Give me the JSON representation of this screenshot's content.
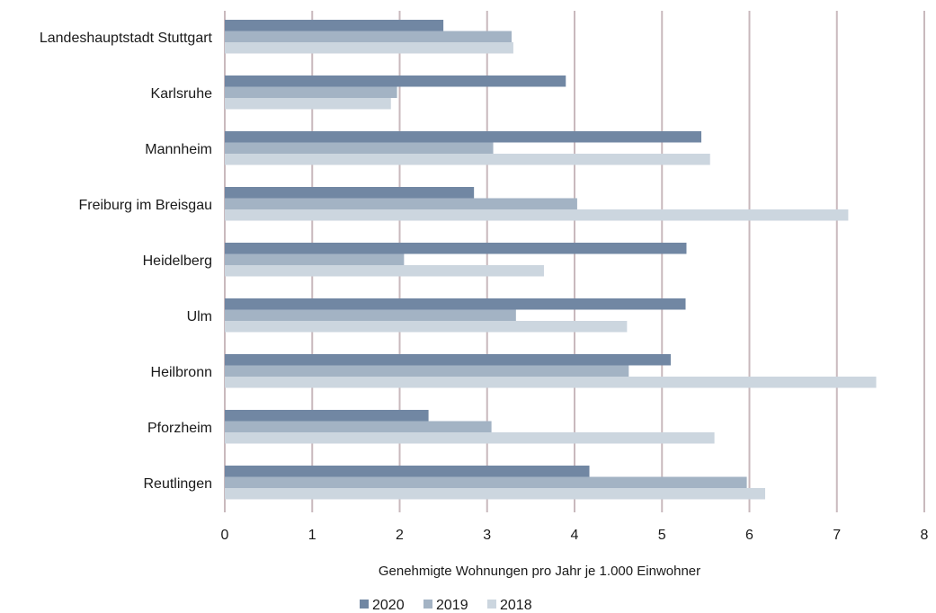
{
  "chart_data": {
    "type": "bar",
    "orientation": "horizontal",
    "categories": [
      "Landeshauptstadt Stuttgart",
      "Karlsruhe",
      "Mannheim",
      "Freiburg im Breisgau",
      "Heidelberg",
      "Ulm",
      "Heilbronn",
      "Pforzheim",
      "Reutlingen"
    ],
    "series": [
      {
        "name": "2020",
        "color": "#7187a3",
        "values": [
          2.5,
          3.9,
          5.45,
          2.85,
          5.28,
          5.27,
          5.1,
          2.33,
          4.17
        ]
      },
      {
        "name": "2019",
        "color": "#a3b3c4",
        "values": [
          3.28,
          1.97,
          3.07,
          4.03,
          2.05,
          3.33,
          4.62,
          3.05,
          5.97
        ]
      },
      {
        "name": "2018",
        "color": "#ccd6df",
        "values": [
          3.3,
          1.9,
          5.55,
          7.13,
          3.65,
          4.6,
          7.45,
          5.6,
          6.18
        ]
      }
    ],
    "xlabel": "Genehmigte Wohnungen pro Jahr je 1.000 Einwohner",
    "ylabel": "",
    "xlim": [
      0,
      8
    ],
    "x_ticks": [
      "0",
      "1",
      "2",
      "3",
      "4",
      "5",
      "6",
      "7",
      "8"
    ],
    "grid": "vertical",
    "grid_color": "#c9b9bd",
    "legend_position": "bottom",
    "legend": [
      "2020",
      "2019",
      "2018"
    ]
  }
}
